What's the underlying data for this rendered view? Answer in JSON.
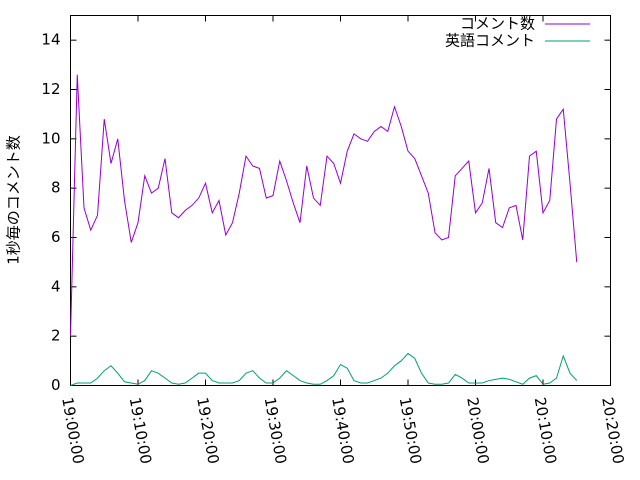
{
  "chart_data": {
    "type": "line",
    "ylabel": "1秒毎のコメント数",
    "x": [
      "19:00:00",
      "19:01:00",
      "19:02:00",
      "19:03:00",
      "19:04:00",
      "19:05:00",
      "19:06:00",
      "19:07:00",
      "19:08:00",
      "19:09:00",
      "19:10:00",
      "19:11:00",
      "19:12:00",
      "19:13:00",
      "19:14:00",
      "19:15:00",
      "19:16:00",
      "19:17:00",
      "19:18:00",
      "19:19:00",
      "19:20:00",
      "19:21:00",
      "19:22:00",
      "19:23:00",
      "19:24:00",
      "19:25:00",
      "19:26:00",
      "19:27:00",
      "19:28:00",
      "19:29:00",
      "19:30:00",
      "19:31:00",
      "19:32:00",
      "19:33:00",
      "19:34:00",
      "19:35:00",
      "19:36:00",
      "19:37:00",
      "19:38:00",
      "19:39:00",
      "19:40:00",
      "19:41:00",
      "19:42:00",
      "19:43:00",
      "19:44:00",
      "19:45:00",
      "19:46:00",
      "19:47:00",
      "19:48:00",
      "19:49:00",
      "19:50:00",
      "19:51:00",
      "19:52:00",
      "19:53:00",
      "19:54:00",
      "19:55:00",
      "19:56:00",
      "19:57:00",
      "19:58:00",
      "19:59:00",
      "20:00:00",
      "20:01:00",
      "20:02:00",
      "20:03:00",
      "20:04:00",
      "20:05:00",
      "20:06:00",
      "20:07:00",
      "20:08:00",
      "20:09:00",
      "20:10:00",
      "20:11:00",
      "20:12:00",
      "20:13:00",
      "20:14:00",
      "20:15:00"
    ],
    "series": [
      {
        "name": "コメント数",
        "color": "#9400d3",
        "values": [
          2.0,
          12.6,
          7.2,
          6.3,
          6.9,
          10.8,
          9.0,
          10.0,
          7.5,
          5.8,
          6.6,
          8.5,
          7.8,
          8.0,
          9.2,
          7.0,
          6.8,
          7.1,
          7.3,
          7.6,
          8.2,
          7.0,
          7.5,
          6.1,
          6.6,
          7.8,
          9.3,
          8.9,
          8.8,
          7.6,
          7.7,
          9.1,
          8.3,
          7.4,
          6.6,
          8.9,
          7.6,
          7.3,
          9.3,
          9.0,
          8.2,
          9.5,
          10.2,
          10.0,
          9.9,
          10.3,
          10.5,
          10.3,
          11.3,
          10.5,
          9.5,
          9.2,
          8.5,
          7.8,
          6.2,
          5.9,
          6.0,
          8.5,
          8.8,
          9.1,
          7.0,
          7.4,
          8.8,
          6.6,
          6.4,
          7.2,
          7.3,
          5.9,
          9.3,
          9.5,
          7.0,
          7.5,
          10.8,
          11.2,
          8.2,
          5.0
        ]
      },
      {
        "name": "英語コメント",
        "color": "#009e73",
        "values": [
          0,
          0.1,
          0.1,
          0.1,
          0.3,
          0.6,
          0.8,
          0.5,
          0.15,
          0.1,
          0.05,
          0.2,
          0.6,
          0.5,
          0.3,
          0.1,
          0.05,
          0.1,
          0.3,
          0.5,
          0.5,
          0.2,
          0.1,
          0.1,
          0.1,
          0.2,
          0.5,
          0.6,
          0.3,
          0.1,
          0.1,
          0.3,
          0.6,
          0.4,
          0.2,
          0.1,
          0.05,
          0.05,
          0.2,
          0.4,
          0.85,
          0.7,
          0.2,
          0.1,
          0.1,
          0.2,
          0.3,
          0.5,
          0.8,
          1.0,
          1.3,
          1.1,
          0.5,
          0.1,
          0.05,
          0.05,
          0.1,
          0.45,
          0.3,
          0.1,
          0.1,
          0.1,
          0.2,
          0.25,
          0.3,
          0.25,
          0.15,
          0.05,
          0.3,
          0.4,
          0.05,
          0.1,
          0.3,
          1.2,
          0.5,
          0.2
        ]
      }
    ],
    "xlim": [
      "19:00:00",
      "20:20:00"
    ],
    "xticks": [
      "19:00:00",
      "19:10:00",
      "19:20:00",
      "19:30:00",
      "19:40:00",
      "19:50:00",
      "20:00:00",
      "20:10:00",
      "20:20:00"
    ],
    "ylim": [
      0,
      15
    ],
    "yticks": [
      0,
      2,
      4,
      6,
      8,
      10,
      12,
      14
    ],
    "legend": "top-right"
  }
}
